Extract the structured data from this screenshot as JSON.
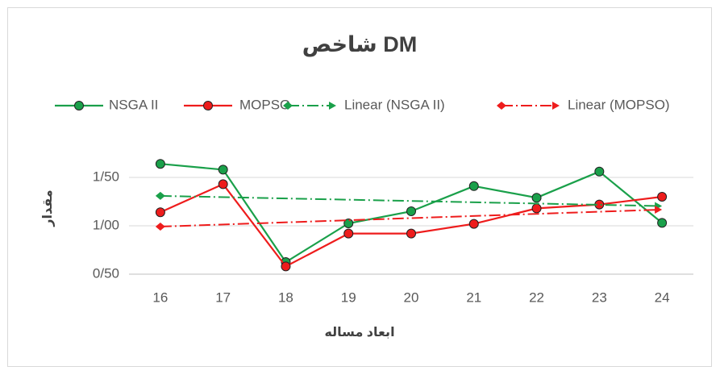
{
  "chart_data": {
    "type": "line",
    "title": "شاخص DM",
    "x_label": "ابعاد مساله",
    "y_label": "مقدار",
    "categories": [
      "16",
      "17",
      "18",
      "19",
      "20",
      "21",
      "22",
      "23",
      "24"
    ],
    "series": [
      {
        "name": "NSGA II",
        "color": "#1aa04a",
        "values": [
          1.64,
          1.58,
          0.625,
          1.025,
          1.15,
          1.41,
          1.29,
          1.56,
          1.03
        ]
      },
      {
        "name": "MOPSO",
        "color": "#ee1c1c",
        "values": [
          1.14,
          1.43,
          0.58,
          0.92,
          0.92,
          1.02,
          1.18,
          1.22,
          1.3
        ]
      }
    ],
    "trendlines": [
      {
        "name": "Linear (NSGA II)",
        "series": 0,
        "color": "#1aa04a"
      },
      {
        "name": "Linear (MOPSO)",
        "series": 1,
        "color": "#ee1c1c"
      }
    ],
    "ylim": [
      0.5,
      1.9
    ],
    "yticks": [
      {
        "value": 0.5,
        "label": "0/50"
      },
      {
        "value": 1,
        "label": "1/00"
      },
      {
        "value": 1.5,
        "label": "1/50"
      }
    ],
    "grid": true
  }
}
